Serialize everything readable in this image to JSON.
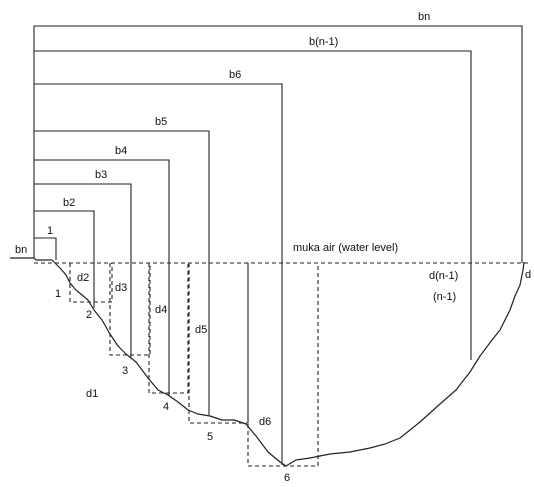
{
  "labels": {
    "bn_top": "bn",
    "b_n_minus_1": "b(n-1)",
    "b6": "b6",
    "b5": "b5",
    "b4": "b4",
    "b3": "b3",
    "b2": "b2",
    "bn_left": "bn",
    "one_top": "1",
    "water_level": "muka air (water level)",
    "d2": "d2",
    "d3": "d3",
    "d4": "d4",
    "d5": "d5",
    "d6": "d6",
    "d1": "d1",
    "d_n_minus_1": "d(n-1)",
    "n_minus_1": "(n-1)",
    "d": "d",
    "p1": "1",
    "p2": "2",
    "p3": "3",
    "p4": "4",
    "p5": "5",
    "p6": "6"
  }
}
